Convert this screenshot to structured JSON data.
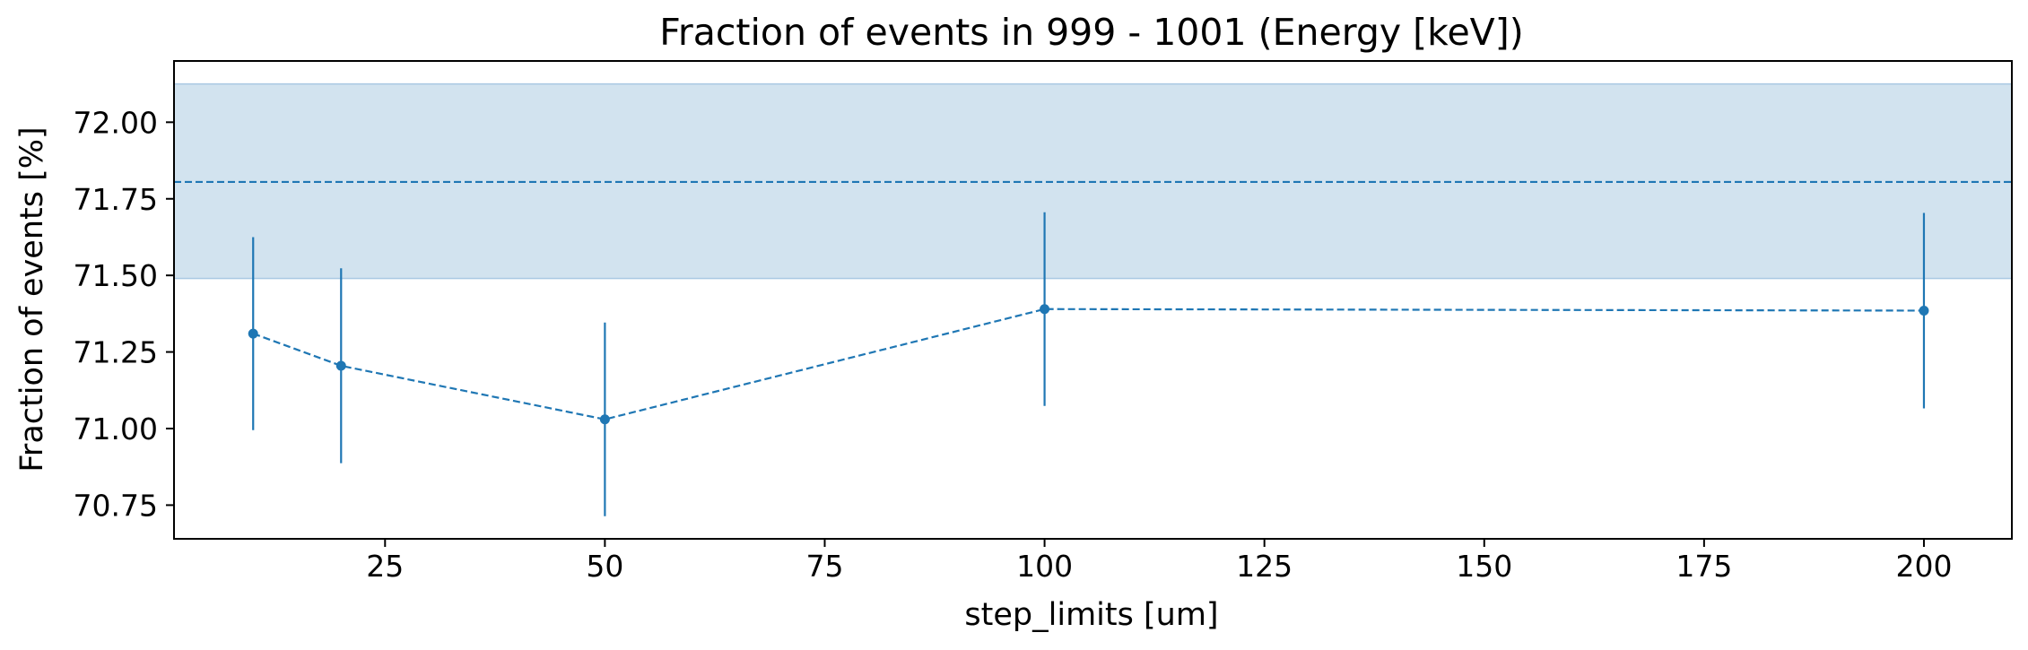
{
  "chart_data": {
    "type": "line",
    "title": "Fraction of events in 999 - 1001 (Energy [keV])",
    "xlabel": "step_limits [um]",
    "ylabel": "Fraction of events [%]",
    "xlim": [
      1,
      210
    ],
    "ylim": [
      70.64,
      72.2
    ],
    "xticks": [
      25,
      50,
      75,
      100,
      125,
      150,
      175,
      200
    ],
    "xtick_labels": [
      "25",
      "50",
      "75",
      "100",
      "125",
      "150",
      "175",
      "200"
    ],
    "yticks": [
      70.75,
      71.0,
      71.25,
      71.5,
      71.75,
      72.0
    ],
    "ytick_labels": [
      "70.75",
      "71.00",
      "71.25",
      "71.50",
      "71.75",
      "72.00"
    ],
    "grid": false,
    "legend": "none",
    "series": [
      {
        "x": [
          10,
          20,
          50,
          100,
          200
        ],
        "values": [
          71.31,
          71.205,
          71.03,
          71.39,
          71.385
        ],
        "yerr": [
          0.315,
          0.318,
          0.316,
          0.316,
          0.319
        ],
        "style": "dashed-with-markers",
        "color": "#1f77b4"
      }
    ],
    "reference": {
      "value": 71.805,
      "band": [
        71.49,
        72.125
      ],
      "line_style": "dashed",
      "color": "#1f77b4",
      "band_color": "#d2e3ef"
    }
  }
}
